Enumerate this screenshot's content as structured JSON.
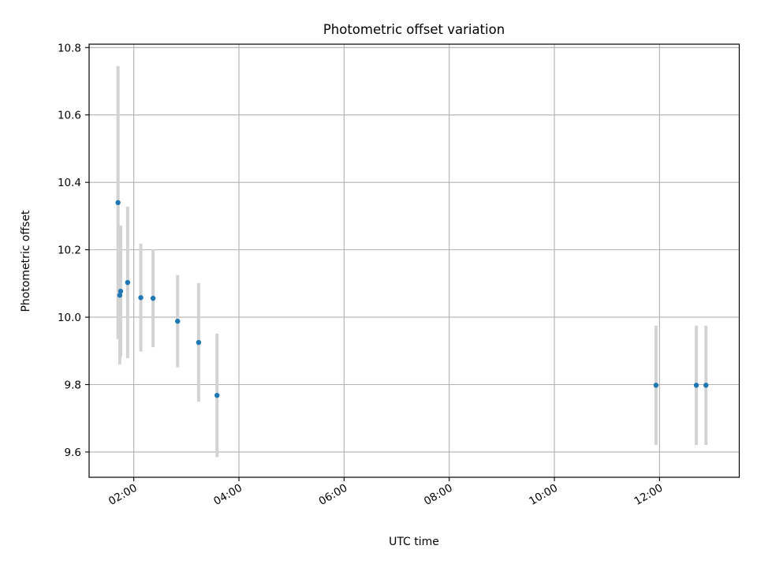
{
  "chart_data": {
    "type": "scatter",
    "title": "Photometric offset variation",
    "xlabel": "UTC time",
    "ylabel": "Photometric offset",
    "x_tick_labels": [
      "02:00",
      "04:00",
      "06:00",
      "08:00",
      "10:00",
      "12:00"
    ],
    "x_ticks": [
      "02:00",
      "04:00",
      "06:00",
      "08:00",
      "10:00",
      "12:00"
    ],
    "y_ticks": [
      9.6,
      9.8,
      10.0,
      10.2,
      10.4,
      10.6,
      10.8
    ],
    "y_tick_labels": [
      "9.6",
      "9.8",
      "10.0",
      "10.2",
      "10.4",
      "10.6",
      "10.8"
    ],
    "xlim": [
      "01:09",
      "13:31"
    ],
    "ylim": [
      9.525,
      10.81
    ],
    "grid": true,
    "colors": {
      "points": "#1f77b4",
      "errorbars": "#d3d3d3",
      "grid": "#b0b0b0"
    },
    "points": [
      {
        "x": "01:42",
        "y": 10.34,
        "yerr": 0.405
      },
      {
        "x": "01:44",
        "y": 10.065,
        "yerr": 0.205
      },
      {
        "x": "01:45",
        "y": 10.077,
        "yerr": 0.195
      },
      {
        "x": "01:53",
        "y": 10.103,
        "yerr": 0.225
      },
      {
        "x": "02:08",
        "y": 10.058,
        "yerr": 0.16
      },
      {
        "x": "02:22",
        "y": 10.056,
        "yerr": 0.145
      },
      {
        "x": "02:50",
        "y": 9.988,
        "yerr": 0.137
      },
      {
        "x": "03:14",
        "y": 9.925,
        "yerr": 0.176
      },
      {
        "x": "03:35",
        "y": 9.768,
        "yerr": 0.183
      },
      {
        "x": "11:56",
        "y": 9.798,
        "yerr": 0.177
      },
      {
        "x": "12:42",
        "y": 9.798,
        "yerr": 0.177
      },
      {
        "x": "12:53",
        "y": 9.798,
        "yerr": 0.177
      }
    ]
  }
}
